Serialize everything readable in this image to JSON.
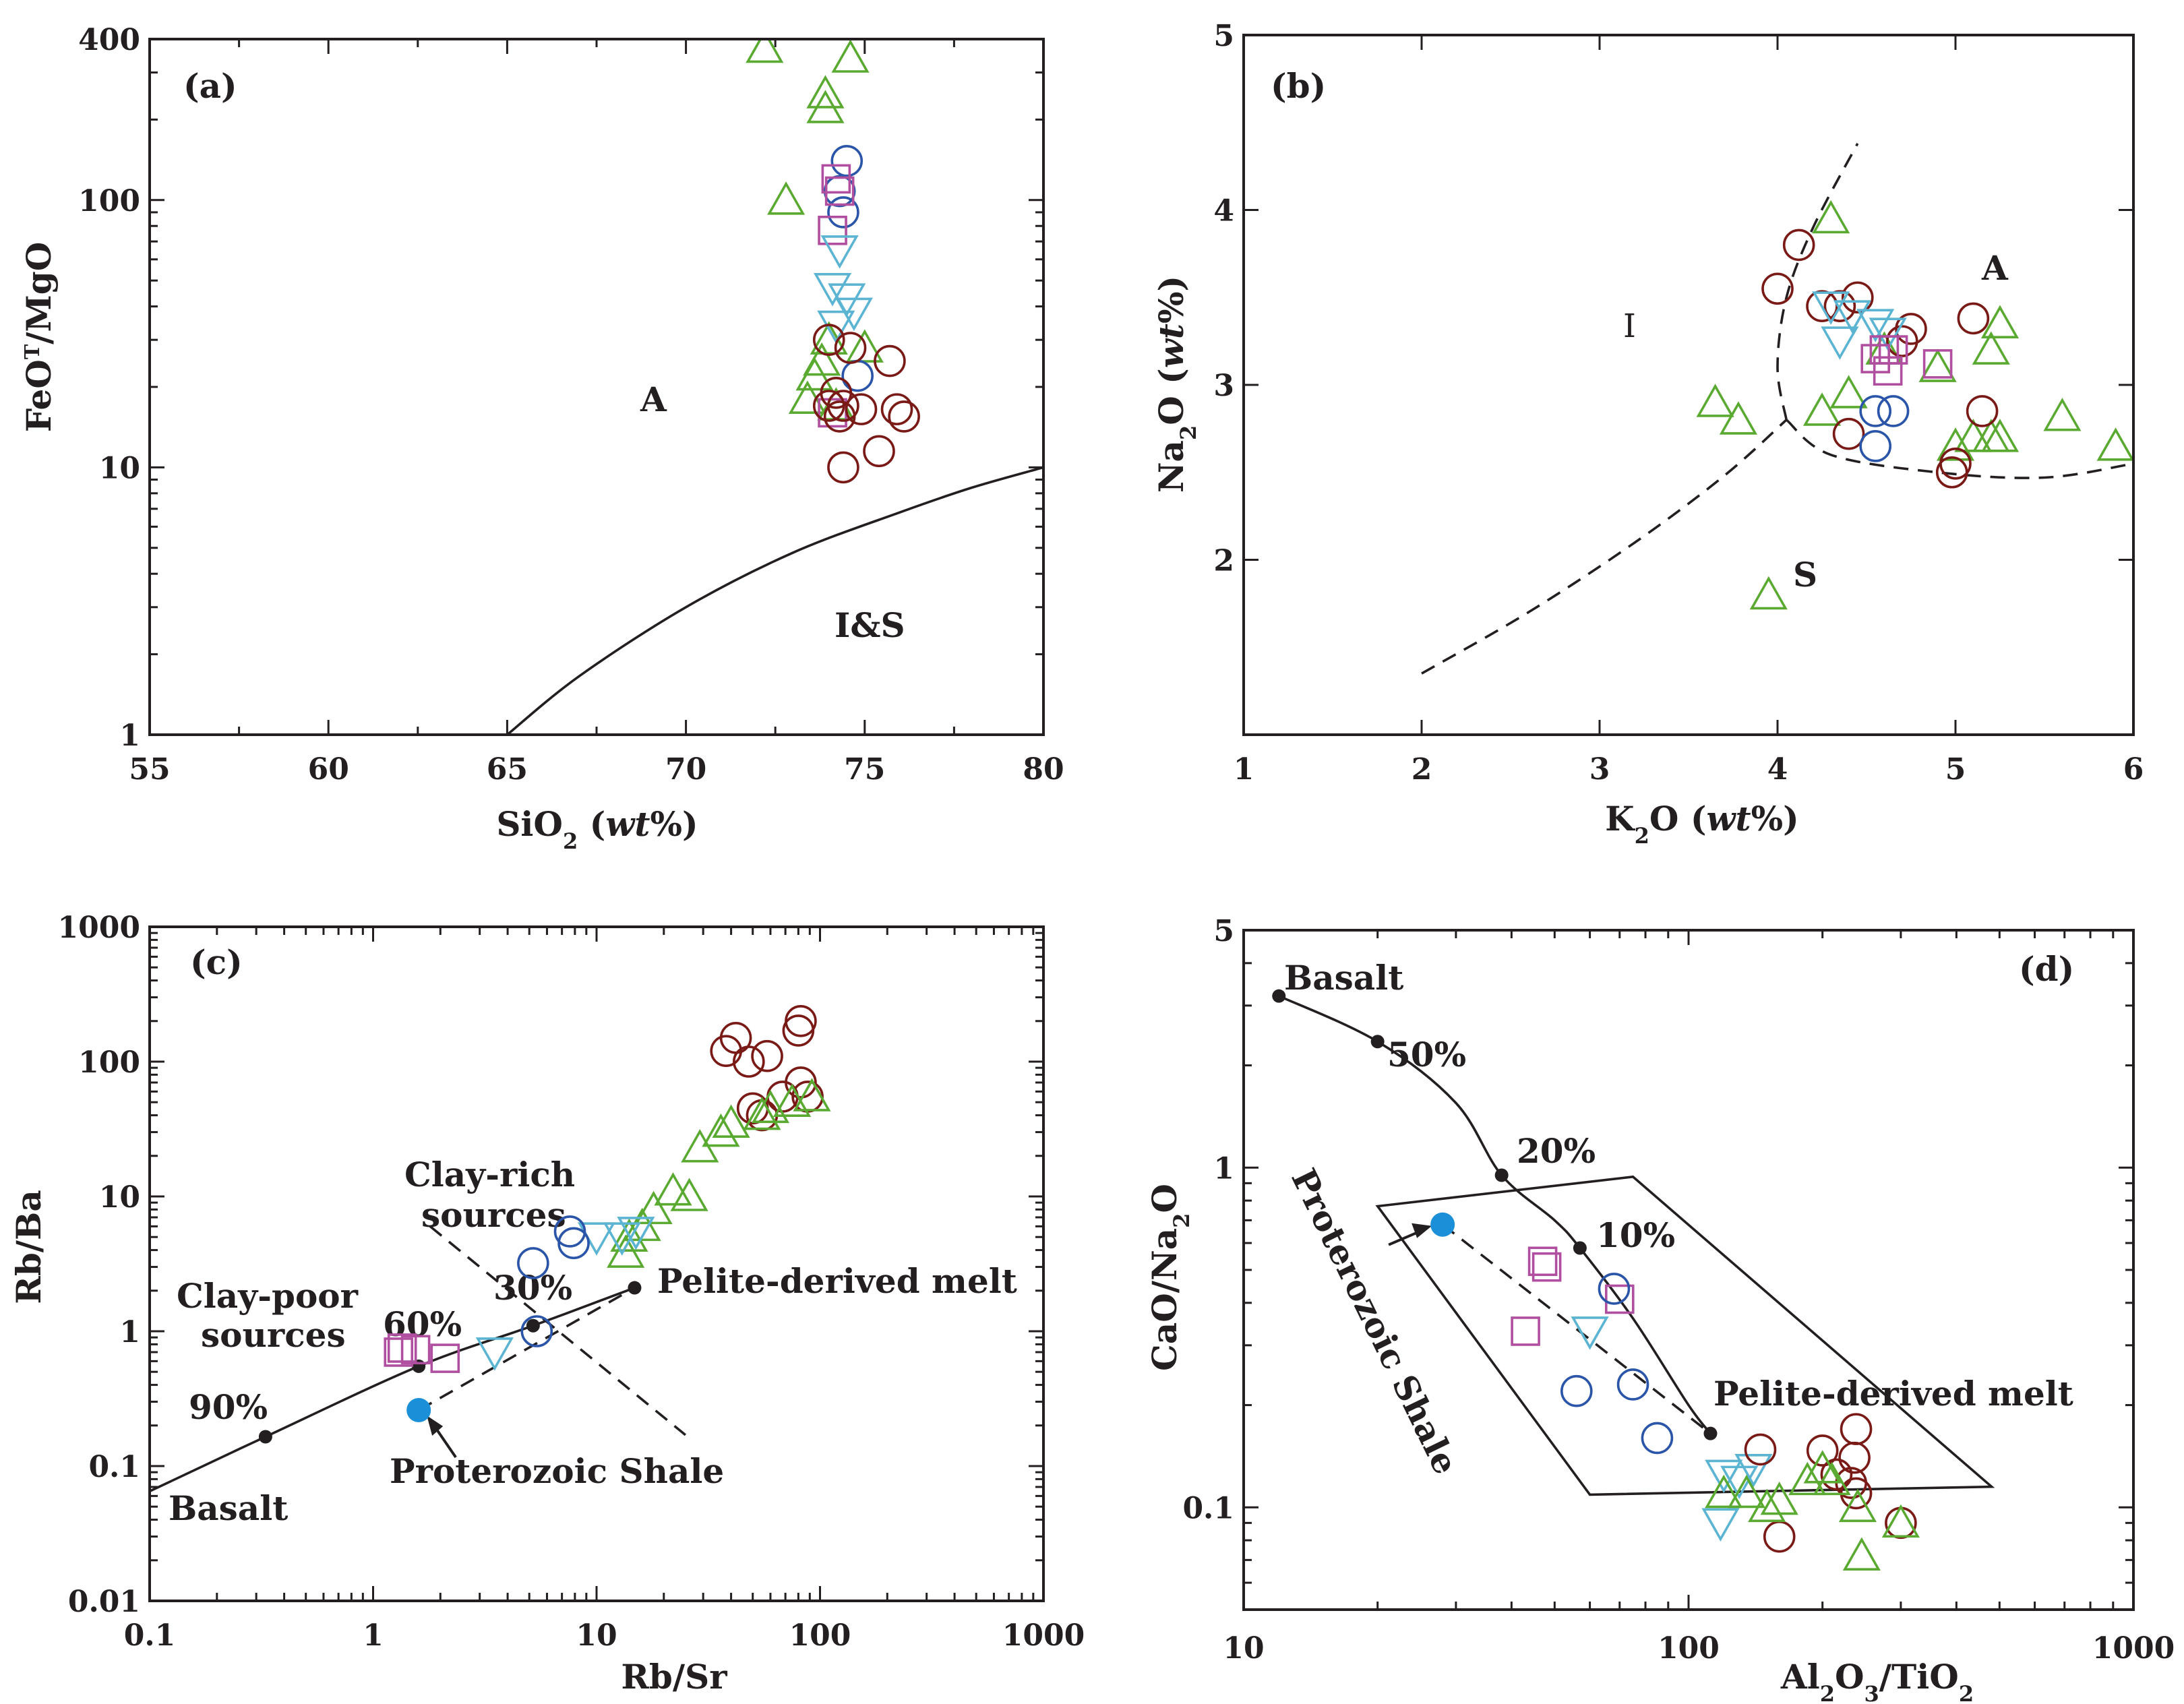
{
  "colors": {
    "A_type": "#5aaa32",
    "brown": "#7a1a16",
    "blue": "#2a55a8",
    "cyan": "#5ab4d2",
    "magenta": "#b04fa0",
    "shale": "#1b8fd8",
    "ink": "#231f20"
  },
  "chart_data": [
    {
      "id": "a",
      "type": "scatter",
      "panel_label": "(a)",
      "xlabel": "SiO2 (wt%)",
      "ylabel": "FeOT/MgO",
      "xlim": [
        55,
        80
      ],
      "ylim": [
        1,
        400
      ],
      "yscale": "log",
      "xticks": [
        "55",
        "60",
        "65",
        "70",
        "75",
        "80"
      ],
      "yticks": [
        "1",
        "10",
        "100",
        "400"
      ],
      "field_labels": [
        "A",
        "I&S"
      ],
      "boundary": [
        [
          65.0,
          1.0
        ],
        [
          67.0,
          1.65
        ],
        [
          70.0,
          3.0
        ],
        [
          73.0,
          4.8
        ],
        [
          76.0,
          6.8
        ],
        [
          78.0,
          8.4
        ],
        [
          80.0,
          10.0
        ]
      ],
      "series": [
        {
          "name": "triangle_green",
          "marker": "triangle",
          "color": "#5aaa32",
          "points": [
            [
              72.2,
              370
            ],
            [
              74.6,
              340
            ],
            [
              73.9,
              250
            ],
            [
              73.9,
              220
            ],
            [
              72.8,
              100
            ],
            [
              74.0,
              30
            ],
            [
              75.0,
              28
            ],
            [
              73.8,
              25
            ],
            [
              73.6,
              22
            ],
            [
              73.4,
              18
            ],
            [
              74.2,
              17
            ]
          ]
        },
        {
          "name": "circle_blue",
          "marker": "circle",
          "color": "#2a55a8",
          "points": [
            [
              74.5,
              140
            ],
            [
              74.3,
              108
            ],
            [
              74.4,
              90
            ],
            [
              74.8,
              22
            ]
          ]
        },
        {
          "name": "square_magenta",
          "marker": "square",
          "color": "#b04fa0",
          "points": [
            [
              74.2,
              120
            ],
            [
              74.3,
              108
            ],
            [
              74.1,
              77
            ],
            [
              74.1,
              16
            ]
          ]
        },
        {
          "name": "triangle_down_cyan",
          "marker": "triangle_down",
          "color": "#5ab4d2",
          "points": [
            [
              74.3,
              65
            ],
            [
              74.1,
              47
            ],
            [
              74.5,
              43
            ],
            [
              74.7,
              38
            ],
            [
              74.2,
              34
            ]
          ]
        },
        {
          "name": "circle_brown",
          "marker": "circle",
          "color": "#7a1a16",
          "points": [
            [
              74.0,
              30
            ],
            [
              74.6,
              28
            ],
            [
              75.7,
              25
            ],
            [
              74.2,
              19
            ],
            [
              74.0,
              17
            ],
            [
              74.4,
              17
            ],
            [
              74.9,
              16.5
            ],
            [
              74.3,
              15.5
            ],
            [
              75.9,
              16.5
            ],
            [
              76.1,
              15.5
            ],
            [
              75.4,
              11.5
            ],
            [
              74.4,
              10
            ]
          ]
        }
      ]
    },
    {
      "id": "b",
      "type": "scatter",
      "panel_label": "(b)",
      "xlabel": "K2O (wt%)",
      "ylabel": "Na2O (wt%)",
      "xlim": [
        1,
        6
      ],
      "ylim": [
        1,
        5
      ],
      "xticks": [
        "1",
        "2",
        "3",
        "4",
        "5",
        "6"
      ],
      "yticks": [
        "2",
        "3",
        "4",
        "5"
      ],
      "field_labels": [
        "I",
        "A",
        "S"
      ],
      "boundaries": [
        [
          [
            2.0,
            1.35
          ],
          [
            2.6,
            1.7
          ],
          [
            3.2,
            2.1
          ],
          [
            3.7,
            2.48
          ],
          [
            4.05,
            2.8
          ]
        ],
        [
          [
            4.05,
            2.8
          ],
          [
            4.0,
            3.1
          ],
          [
            4.05,
            3.5
          ],
          [
            4.2,
            3.9
          ],
          [
            4.45,
            4.38
          ]
        ],
        [
          [
            4.05,
            2.8
          ],
          [
            4.3,
            2.6
          ],
          [
            4.9,
            2.5
          ],
          [
            5.5,
            2.47
          ],
          [
            6.0,
            2.55
          ]
        ]
      ],
      "series": [
        {
          "name": "triangle_green",
          "marker": "triangle",
          "color": "#5aaa32",
          "points": [
            [
              4.3,
              3.95
            ],
            [
              3.65,
              2.9
            ],
            [
              3.78,
              2.8
            ],
            [
              4.25,
              2.85
            ],
            [
              4.4,
              2.95
            ],
            [
              4.6,
              3.2
            ],
            [
              4.9,
              3.1
            ],
            [
              5.2,
              3.2
            ],
            [
              5.25,
              3.35
            ],
            [
              5.0,
              2.65
            ],
            [
              5.1,
              2.7
            ],
            [
              5.2,
              2.7
            ],
            [
              5.25,
              2.7
            ],
            [
              5.6,
              2.82
            ],
            [
              5.9,
              2.65
            ],
            [
              3.95,
              1.8
            ]
          ]
        },
        {
          "name": "circle_brown",
          "marker": "circle",
          "color": "#7a1a16",
          "points": [
            [
              4.0,
              3.55
            ],
            [
              4.12,
              3.8
            ],
            [
              4.25,
              3.45
            ],
            [
              4.35,
              3.45
            ],
            [
              4.45,
              3.5
            ],
            [
              4.7,
              3.25
            ],
            [
              4.75,
              3.32
            ],
            [
              5.1,
              3.38
            ],
            [
              5.15,
              2.85
            ],
            [
              4.4,
              2.72
            ],
            [
              5.0,
              2.55
            ],
            [
              4.98,
              2.5
            ]
          ]
        },
        {
          "name": "triangle_down_cyan",
          "marker": "triangle_down",
          "color": "#5ab4d2",
          "points": [
            [
              4.3,
              3.45
            ],
            [
              4.42,
              3.4
            ],
            [
              4.55,
              3.35
            ],
            [
              4.62,
              3.3
            ],
            [
              4.35,
              3.25
            ]
          ]
        },
        {
          "name": "square_magenta",
          "marker": "square",
          "color": "#b04fa0",
          "points": [
            [
              4.55,
              3.15
            ],
            [
              4.6,
              3.2
            ],
            [
              4.65,
              3.2
            ],
            [
              4.62,
              3.08
            ],
            [
              4.9,
              3.12
            ]
          ]
        },
        {
          "name": "circle_blue",
          "marker": "circle",
          "color": "#2a55a8",
          "points": [
            [
              4.55,
              2.85
            ],
            [
              4.65,
              2.85
            ],
            [
              4.55,
              2.65
            ]
          ]
        }
      ]
    },
    {
      "id": "c",
      "type": "scatter",
      "panel_label": "(c)",
      "xlabel": "Rb/Sr",
      "ylabel": "Rb/Ba",
      "xlim": [
        0.1,
        1000
      ],
      "ylim": [
        0.01,
        1000
      ],
      "xscale": "log",
      "yscale": "log",
      "xticks": [
        "0.1",
        "1",
        "10",
        "100",
        "1000"
      ],
      "yticks": [
        "0.01",
        "0.1",
        "1",
        "10",
        "100",
        "1000"
      ],
      "annotations": [
        "Clay-rich",
        "sources",
        "Clay-poor",
        "sources",
        "30%",
        "60%",
        "90%",
        "Pelite-derived melt",
        "Proterozoic Shale",
        "Basalt"
      ],
      "mixing_line": [
        [
          0.1,
          0.065
        ],
        [
          0.33,
          0.165
        ],
        [
          1.6,
          0.55
        ],
        [
          5.2,
          1.1
        ],
        [
          14.8,
          2.1
        ]
      ],
      "mixing_points": [
        [
          0.33,
          0.165
        ],
        [
          1.6,
          0.55
        ],
        [
          5.2,
          1.1
        ],
        [
          14.8,
          2.1
        ]
      ],
      "shale_line": [
        [
          1.6,
          0.26
        ],
        [
          14.8,
          2.1
        ]
      ],
      "divider_line": [
        [
          1.8,
          6.0
        ],
        [
          25.0,
          0.17
        ]
      ],
      "shale_point": [
        1.6,
        0.26
      ],
      "series": [
        {
          "name": "circle_brown",
          "marker": "circle",
          "color": "#7a1a16",
          "points": [
            [
              38,
              120
            ],
            [
              42,
              150
            ],
            [
              48,
              100
            ],
            [
              58,
              110
            ],
            [
              82,
              200
            ],
            [
              80,
              170
            ],
            [
              50,
              45
            ],
            [
              55,
              40
            ],
            [
              68,
              55
            ],
            [
              82,
              70
            ],
            [
              88,
              55
            ]
          ]
        },
        {
          "name": "triangle_green",
          "marker": "triangle",
          "color": "#5aaa32",
          "points": [
            [
              92,
              55
            ],
            [
              75,
              50
            ],
            [
              60,
              45
            ],
            [
              55,
              40
            ],
            [
              40,
              35
            ],
            [
              36,
              30
            ],
            [
              29,
              23
            ],
            [
              26,
              10
            ],
            [
              22,
              11
            ],
            [
              18,
              8
            ],
            [
              16,
              6
            ],
            [
              14,
              5
            ],
            [
              13.5,
              3.8
            ]
          ]
        },
        {
          "name": "triangle_down_cyan",
          "marker": "triangle_down",
          "color": "#5ab4d2",
          "points": [
            [
              10,
              5
            ],
            [
              13,
              5
            ],
            [
              15,
              5.5
            ],
            [
              3.5,
              0.7
            ]
          ]
        },
        {
          "name": "circle_blue",
          "marker": "circle",
          "color": "#2a55a8",
          "points": [
            [
              5.2,
              3.2
            ],
            [
              7.6,
              5.5
            ],
            [
              7.9,
              4.5
            ],
            [
              5.4,
              1.0
            ]
          ]
        },
        {
          "name": "square_magenta",
          "marker": "square",
          "color": "#b04fa0",
          "points": [
            [
              1.3,
              0.7
            ],
            [
              1.35,
              0.75
            ],
            [
              1.55,
              0.73
            ],
            [
              2.1,
              0.63
            ]
          ]
        }
      ]
    },
    {
      "id": "d",
      "type": "scatter",
      "panel_label": "(d)",
      "xlabel": "Al2O3/TiO2",
      "ylabel": "CaO/Na2O",
      "xlim": [
        10,
        1000
      ],
      "ylim": [
        0.05,
        5
      ],
      "xscale": "log",
      "yscale": "log",
      "xticks": [
        "10",
        "100",
        "1000"
      ],
      "yticks": [
        "0.1",
        "1",
        "5"
      ],
      "annotations": [
        "Basalt",
        "50%",
        "20%",
        "10%",
        "Pelite-derived melt",
        "Proterozoic Shale"
      ],
      "mixing_line": [
        [
          12,
          3.2
        ],
        [
          20,
          2.35
        ],
        [
          30,
          1.55
        ],
        [
          38,
          0.95
        ],
        [
          50,
          0.7
        ],
        [
          57,
          0.58
        ],
        [
          75,
          0.36
        ],
        [
          100,
          0.2
        ],
        [
          112,
          0.165
        ]
      ],
      "mixing_points": [
        [
          12,
          3.2
        ],
        [
          20,
          2.35
        ],
        [
          38,
          0.95
        ],
        [
          57,
          0.58
        ],
        [
          112,
          0.165
        ]
      ],
      "shale_field": [
        [
          20,
          0.77
        ],
        [
          75,
          0.94
        ],
        [
          480,
          0.115
        ],
        [
          60,
          0.109
        ]
      ],
      "shale_line": [
        [
          28,
          0.68
        ],
        [
          112,
          0.165
        ]
      ],
      "shale_point": [
        28,
        0.68
      ],
      "series": [
        {
          "name": "square_magenta",
          "marker": "square",
          "color": "#b04fa0",
          "points": [
            [
              47,
              0.53
            ],
            [
              48,
              0.51
            ],
            [
              70,
              0.41
            ],
            [
              43,
              0.33
            ]
          ]
        },
        {
          "name": "circle_blue",
          "marker": "circle",
          "color": "#2a55a8",
          "points": [
            [
              68,
              0.44
            ],
            [
              56,
              0.22
            ],
            [
              75,
              0.23
            ],
            [
              85,
              0.16
            ]
          ]
        },
        {
          "name": "triangle_down_cyan",
          "marker": "triangle_down",
          "color": "#5ab4d2",
          "points": [
            [
              60,
              0.33
            ],
            [
              120,
              0.125
            ],
            [
              130,
              0.12
            ],
            [
              140,
              0.13
            ],
            [
              118,
              0.09
            ]
          ]
        },
        {
          "name": "circle_brown",
          "marker": "circle",
          "color": "#7a1a16",
          "points": [
            [
              145,
              0.148
            ],
            [
              200,
              0.147
            ],
            [
              215,
              0.125
            ],
            [
              238,
              0.17
            ],
            [
              236,
              0.14
            ],
            [
              232,
              0.118
            ],
            [
              238,
              0.11
            ],
            [
              300,
              0.09
            ],
            [
              160,
              0.082
            ]
          ]
        },
        {
          "name": "triangle_green",
          "marker": "triangle",
          "color": "#5aaa32",
          "points": [
            [
              120,
              0.11
            ],
            [
              135,
              0.11
            ],
            [
              150,
              0.1
            ],
            [
              160,
              0.105
            ],
            [
              185,
              0.12
            ],
            [
              200,
              0.13
            ],
            [
              210,
              0.12
            ],
            [
              240,
              0.1
            ],
            [
              245,
              0.072
            ],
            [
              300,
              0.09
            ]
          ]
        }
      ]
    }
  ]
}
